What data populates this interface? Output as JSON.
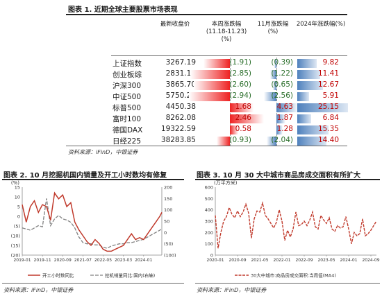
{
  "fig1": {
    "title": "图表 1. 近期全球主要股票市场表现",
    "source": "资料来源：iFinD，中银证券"
  },
  "fig2": {
    "title": "图表 2. 10 月挖掘机国内销量及开工小时数均有修复",
    "source": "资料来源：iFinD，中银证券",
    "unit_label": "(%)"
  },
  "fig3": {
    "title": "图表 3. 10 月 30 大中城市商品房成交面积有所扩大",
    "source": "资料来源：iFinD，中银证券",
    "unit_label": "(万平方米)"
  },
  "chart_data": [
    {
      "type": "table",
      "title": "近期全球主要股票市场表现",
      "columns": [
        "",
        "最新收盘价",
        "本周涨跌幅(11.18-11.23)(%)",
        "11月涨跌幅(%)",
        "2024年涨跌幅(%)"
      ],
      "rows": [
        {
          "name": "上证指数",
          "close": "3267.19",
          "week": "(1.91)",
          "month": "(0.39)",
          "ytd": "9.82",
          "week_v": -1.91,
          "month_v": -0.39,
          "ytd_v": 9.82
        },
        {
          "name": "创业板综",
          "close": "2831.11",
          "week": "(2.85)",
          "month": "(1.22)",
          "ytd": "11.41",
          "week_v": -2.85,
          "month_v": -1.22,
          "ytd_v": 11.41
        },
        {
          "name": "沪深300",
          "close": "3865.70",
          "week": "(2.60)",
          "month": "(0.65)",
          "ytd": "12.67",
          "week_v": -2.6,
          "month_v": -0.65,
          "ytd_v": 12.67
        },
        {
          "name": "中证500",
          "close": "5750.25",
          "week": "(2.94)",
          "month": "(2.56)",
          "ytd": "5.91",
          "week_v": -2.94,
          "month_v": -2.56,
          "ytd_v": 5.91
        },
        {
          "name": "标普500",
          "close": "4450.38",
          "week": "1.68",
          "month": "4.63",
          "ytd": "25.15",
          "week_v": 1.68,
          "month_v": 4.63,
          "ytd_v": 25.15
        },
        {
          "name": "富时100",
          "close": "8262.08",
          "week": "2.46",
          "month": "1.87",
          "ytd": "6.84",
          "week_v": 2.46,
          "month_v": 1.87,
          "ytd_v": 6.84
        },
        {
          "name": "德国DAX",
          "close": "19322.59",
          "week": "0.58",
          "month": "1.28",
          "ytd": "15.35",
          "week_v": 0.58,
          "month_v": 1.28,
          "ytd_v": 15.35
        },
        {
          "name": "日经225",
          "close": "38283.85",
          "week": "(0.93)",
          "month": "(2.04)",
          "ytd": "14.40",
          "week_v": -0.93,
          "month_v": -2.04,
          "ytd_v": 14.4
        }
      ]
    },
    {
      "type": "line",
      "left_ylim": [
        -20,
        15
      ],
      "left_yticks": [
        "15",
        "10",
        "5",
        "0",
        "(5)",
        "(10)",
        "(15)",
        "(20)"
      ],
      "right_ylim": [
        -100,
        200
      ],
      "right_yticks": [
        "200",
        "150",
        "100",
        "50",
        "0",
        "(50)",
        "(100)"
      ],
      "x_range": [
        "2019-01",
        "2024-10"
      ],
      "xticks": [
        "2019-01",
        "2019-11",
        "2020-09",
        "2021-07",
        "2022-05",
        "2023-03",
        "2024-01"
      ],
      "series": [
        {
          "name": "开工小时数同比",
          "axis": "left",
          "color": "#c0392b",
          "x": [
            "2019-01",
            "2019-03",
            "2019-05",
            "2019-07",
            "2019-09",
            "2019-11",
            "2020-01",
            "2020-03",
            "2020-05",
            "2020-07",
            "2020-09",
            "2020-11",
            "2021-01",
            "2021-03",
            "2021-05",
            "2021-07",
            "2021-09",
            "2021-11",
            "2022-01",
            "2022-03",
            "2022-05",
            "2022-07",
            "2022-09",
            "2022-11",
            "2023-01",
            "2023-03",
            "2023-05",
            "2023-07",
            "2023-09",
            "2023-11",
            "2024-01",
            "2024-03",
            "2024-05",
            "2024-07",
            "2024-09",
            "2024-10"
          ],
          "values": [
            6,
            -3,
            5,
            8,
            2,
            6,
            5,
            -2,
            12,
            9,
            11,
            5,
            7,
            -3,
            -7,
            -10,
            -13,
            -15,
            -12,
            -14,
            -17,
            -18,
            -18,
            -17,
            -16,
            -15,
            -12,
            -9,
            -12,
            -11,
            -12,
            -9,
            -6,
            -3,
            0,
            2
          ]
        },
        {
          "name": "挖机销量同比:国内(右轴)",
          "axis": "right",
          "color": "#808080",
          "x": [
            "2019-01",
            "2019-03",
            "2019-05",
            "2019-07",
            "2019-09",
            "2019-11",
            "2020-01",
            "2020-03",
            "2020-05",
            "2020-07",
            "2020-09",
            "2020-11",
            "2021-01",
            "2021-03",
            "2021-05",
            "2021-07",
            "2021-09",
            "2021-11",
            "2022-01",
            "2022-03",
            "2022-05",
            "2022-07",
            "2022-09",
            "2022-11",
            "2023-01",
            "2023-03",
            "2023-05",
            "2023-07",
            "2023-09",
            "2023-11",
            "2024-01",
            "2024-03",
            "2024-05",
            "2024-07",
            "2024-09",
            "2024-10"
          ],
          "values": [
            20,
            15,
            10,
            20,
            30,
            25,
            150,
            30,
            60,
            75,
            60,
            55,
            45,
            20,
            -20,
            -45,
            -50,
            -50,
            -55,
            -55,
            -65,
            -70,
            -60,
            -55,
            -50,
            -50,
            -45,
            -45,
            -40,
            -35,
            -30,
            -20,
            -10,
            0,
            10,
            15
          ]
        }
      ]
    },
    {
      "type": "line",
      "ylim": [
        0,
        600
      ],
      "yticks": [
        "600",
        "500",
        "400",
        "300",
        "200",
        "100",
        "0"
      ],
      "x_range": [
        "2020-01",
        "2024-11"
      ],
      "xticks": [
        "2020-01",
        "2020-09",
        "2021-05",
        "2022-01",
        "2022-09",
        "2023-05",
        "2024-01",
        "2024-09"
      ],
      "series": [
        {
          "name": "30大中城市:商品房成交面积:当周值(MA4)",
          "color": "#c0392b",
          "x": [
            "2020-01",
            "2020-02",
            "2020-03",
            "2020-04",
            "2020-05",
            "2020-06",
            "2020-07",
            "2020-08",
            "2020-09",
            "2020-10",
            "2020-11",
            "2020-12",
            "2021-01",
            "2021-02",
            "2021-03",
            "2021-04",
            "2021-05",
            "2021-06",
            "2021-07",
            "2021-08",
            "2021-09",
            "2021-10",
            "2021-11",
            "2021-12",
            "2022-01",
            "2022-02",
            "2022-03",
            "2022-04",
            "2022-05",
            "2022-06",
            "2022-07",
            "2022-08",
            "2022-09",
            "2022-10",
            "2022-11",
            "2022-12",
            "2023-01",
            "2023-02",
            "2023-03",
            "2023-04",
            "2023-05",
            "2023-06",
            "2023-07",
            "2023-08",
            "2023-09",
            "2023-10",
            "2023-11",
            "2023-12",
            "2024-01",
            "2024-02",
            "2024-03",
            "2024-04",
            "2024-05",
            "2024-06",
            "2024-07",
            "2024-08",
            "2024-09",
            "2024-10",
            "2024-11"
          ],
          "values": [
            350,
            60,
            200,
            300,
            340,
            420,
            360,
            330,
            390,
            340,
            380,
            450,
            370,
            150,
            320,
            390,
            380,
            460,
            350,
            320,
            280,
            240,
            290,
            400,
            300,
            130,
            220,
            160,
            230,
            380,
            260,
            270,
            300,
            260,
            310,
            380,
            250,
            230,
            350,
            310,
            280,
            330,
            230,
            210,
            260,
            240,
            250,
            340,
            230,
            100,
            200,
            170,
            190,
            320,
            170,
            190,
            220,
            260,
            300
          ]
        }
      ]
    }
  ]
}
